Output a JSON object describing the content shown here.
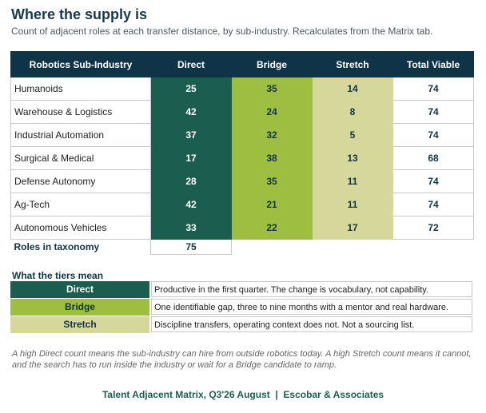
{
  "header": {
    "title": "Where the supply is",
    "subtitle": "Count of adjacent roles at each transfer distance, by sub-industry. Recalculates from the Matrix tab."
  },
  "table": {
    "columns": [
      "Robotics Sub-Industry",
      "Direct",
      "Bridge",
      "Stretch",
      "Total Viable"
    ],
    "rows": [
      {
        "name": "Humanoids",
        "direct": "25",
        "bridge": "35",
        "stretch": "14",
        "total": "74"
      },
      {
        "name": "Warehouse & Logistics",
        "direct": "42",
        "bridge": "24",
        "stretch": "8",
        "total": "74"
      },
      {
        "name": "Industrial Automation",
        "direct": "37",
        "bridge": "32",
        "stretch": "5",
        "total": "74"
      },
      {
        "name": "Surgical & Medical",
        "direct": "17",
        "bridge": "38",
        "stretch": "13",
        "total": "68"
      },
      {
        "name": "Defense Autonomy",
        "direct": "28",
        "bridge": "35",
        "stretch": "11",
        "total": "74"
      },
      {
        "name": "Ag-Tech",
        "direct": "42",
        "bridge": "21",
        "stretch": "11",
        "total": "74"
      },
      {
        "name": "Autonomous Vehicles",
        "direct": "33",
        "bridge": "22",
        "stretch": "17",
        "total": "72"
      }
    ],
    "roles_label": "Roles in taxonomy",
    "roles_value": "75"
  },
  "tiers": {
    "title": "What the tiers mean",
    "items": [
      {
        "label": "Direct",
        "desc": "Productive in the first quarter. The change is vocabulary, not capability."
      },
      {
        "label": "Bridge",
        "desc": "One identifiable gap, three to nine months with a mentor and real hardware."
      },
      {
        "label": "Stretch",
        "desc": "Discipline transfers, operating context does not. Not a sourcing list."
      }
    ]
  },
  "note": "A high Direct count means the sub-industry can hire from outside robotics today. A high Stretch count means it cannot, and the search has to run inside the industry or wait for a Bridge candidate to ramp.",
  "footer": "Talent Adjacent Matrix, Q3'26 August  |  Escobar & Associates",
  "colors": {
    "header_bg": "#0f3448",
    "direct": "#1b5e4f",
    "bridge": "#9ebe41",
    "stretch": "#d6d79a"
  }
}
